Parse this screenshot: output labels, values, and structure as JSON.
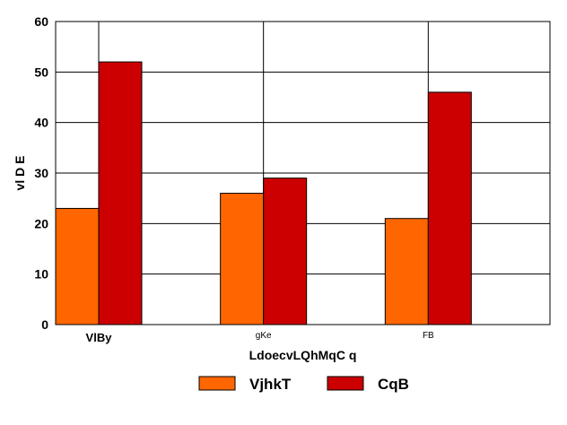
{
  "chart_data": {
    "type": "bar",
    "title": "",
    "xlabel": "LdoecvLQhMqC q",
    "ylabel": "vl D E",
    "categories": [
      "VlBy",
      "gKe",
      "FB"
    ],
    "series": [
      {
        "name": "VjhkT",
        "color": "#ff6600",
        "values": [
          23,
          26,
          21
        ]
      },
      {
        "name": "CqB",
        "color": "#cc0000",
        "values": [
          52,
          29,
          46
        ]
      }
    ],
    "ylim": [
      0,
      60
    ],
    "yticks": [
      0,
      10,
      20,
      30,
      40,
      50,
      60
    ],
    "grid": true,
    "legend_position": "bottom"
  }
}
